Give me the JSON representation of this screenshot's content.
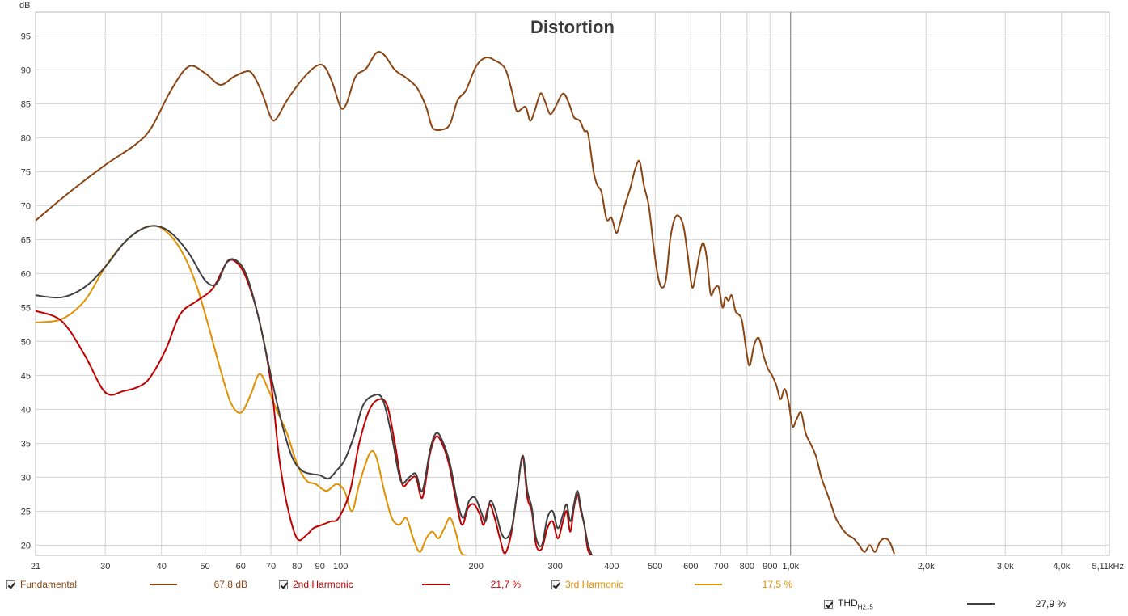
{
  "chart_data": {
    "type": "line",
    "title": "Distortion",
    "ylabel": "dB",
    "xscale": "log",
    "xlim": [
      21,
      5110
    ],
    "ylim": [
      18.5,
      98.5
    ],
    "grid": true,
    "x_ticks": [
      {
        "v": 21,
        "label": "21"
      },
      {
        "v": 30,
        "label": "30"
      },
      {
        "v": 40,
        "label": "40"
      },
      {
        "v": 50,
        "label": "50"
      },
      {
        "v": 60,
        "label": "60"
      },
      {
        "v": 70,
        "label": "70"
      },
      {
        "v": 80,
        "label": "80"
      },
      {
        "v": 90,
        "label": "90"
      },
      {
        "v": 100,
        "label": "100"
      },
      {
        "v": 200,
        "label": "200"
      },
      {
        "v": 300,
        "label": "300"
      },
      {
        "v": 400,
        "label": "400"
      },
      {
        "v": 500,
        "label": "500"
      },
      {
        "v": 600,
        "label": "600"
      },
      {
        "v": 700,
        "label": "700"
      },
      {
        "v": 800,
        "label": "800"
      },
      {
        "v": 900,
        "label": "900"
      },
      {
        "v": 1000,
        "label": "1,0k"
      },
      {
        "v": 2000,
        "label": "2,0k"
      },
      {
        "v": 3000,
        "label": "3,0k"
      },
      {
        "v": 4000,
        "label": "4,0k"
      },
      {
        "v": 5110,
        "label": "5,11kHz"
      }
    ],
    "y_ticks": [
      20,
      25,
      30,
      35,
      40,
      45,
      50,
      55,
      60,
      65,
      70,
      75,
      80,
      85,
      90,
      95
    ],
    "series": [
      {
        "name": "Fundamental",
        "color": "#8b4513",
        "points": [
          [
            21,
            67.8
          ],
          [
            25,
            72
          ],
          [
            30,
            76
          ],
          [
            35,
            79
          ],
          [
            38,
            81.5
          ],
          [
            42,
            87
          ],
          [
            46,
            90.5
          ],
          [
            50,
            89.5
          ],
          [
            54,
            87.8
          ],
          [
            58,
            89
          ],
          [
            62,
            89.8
          ],
          [
            64,
            89.2
          ],
          [
            67,
            86.5
          ],
          [
            70,
            83
          ],
          [
            72,
            82.8
          ],
          [
            76,
            85.5
          ],
          [
            82,
            88.5
          ],
          [
            88,
            90.5
          ],
          [
            92,
            90.5
          ],
          [
            96,
            88
          ],
          [
            100,
            84.5
          ],
          [
            103,
            85
          ],
          [
            108,
            89
          ],
          [
            114,
            90.2
          ],
          [
            120,
            92.5
          ],
          [
            125,
            92.2
          ],
          [
            132,
            90
          ],
          [
            140,
            88.8
          ],
          [
            148,
            87.3
          ],
          [
            155,
            84.5
          ],
          [
            160,
            81.5
          ],
          [
            168,
            81.2
          ],
          [
            175,
            82
          ],
          [
            182,
            85.5
          ],
          [
            190,
            87
          ],
          [
            200,
            90.5
          ],
          [
            210,
            91.8
          ],
          [
            220,
            91.4
          ],
          [
            232,
            90.2
          ],
          [
            240,
            87
          ],
          [
            246,
            84
          ],
          [
            252,
            84.2
          ],
          [
            258,
            84.5
          ],
          [
            264,
            82.5
          ],
          [
            270,
            84
          ],
          [
            278,
            86.5
          ],
          [
            284,
            85.5
          ],
          [
            292,
            83.5
          ],
          [
            300,
            84.5
          ],
          [
            312,
            86.5
          ],
          [
            322,
            85
          ],
          [
            330,
            83
          ],
          [
            340,
            82.5
          ],
          [
            348,
            81
          ],
          [
            355,
            80.5
          ],
          [
            365,
            75
          ],
          [
            372,
            73
          ],
          [
            380,
            72
          ],
          [
            390,
            68
          ],
          [
            400,
            68.2
          ],
          [
            410,
            66
          ],
          [
            418,
            67.5
          ],
          [
            428,
            70
          ],
          [
            440,
            72.5
          ],
          [
            452,
            75.5
          ],
          [
            462,
            76.5
          ],
          [
            472,
            73
          ],
          [
            484,
            70
          ],
          [
            496,
            64
          ],
          [
            506,
            60
          ],
          [
            516,
            58
          ],
          [
            528,
            59
          ],
          [
            540,
            65
          ],
          [
            552,
            68
          ],
          [
            564,
            68.5
          ],
          [
            578,
            67
          ],
          [
            590,
            63
          ],
          [
            604,
            58
          ],
          [
            616,
            60
          ],
          [
            628,
            63
          ],
          [
            640,
            64.5
          ],
          [
            652,
            62
          ],
          [
            664,
            57
          ],
          [
            678,
            57.8
          ],
          [
            692,
            58
          ],
          [
            706,
            55
          ],
          [
            716,
            56.5
          ],
          [
            728,
            56
          ],
          [
            740,
            56.8
          ],
          [
            754,
            54.5
          ],
          [
            766,
            54
          ],
          [
            780,
            53
          ],
          [
            800,
            48
          ],
          [
            812,
            46.5
          ],
          [
            830,
            49.5
          ],
          [
            850,
            50.5
          ],
          [
            870,
            48
          ],
          [
            890,
            46
          ],
          [
            910,
            45
          ],
          [
            930,
            43.5
          ],
          [
            950,
            41.5
          ],
          [
            970,
            43
          ],
          [
            990,
            41
          ],
          [
            1010,
            37.5
          ],
          [
            1030,
            38.5
          ],
          [
            1055,
            39.5
          ],
          [
            1080,
            36.5
          ],
          [
            1110,
            34.8
          ],
          [
            1140,
            33
          ],
          [
            1170,
            30
          ],
          [
            1200,
            28
          ],
          [
            1230,
            26
          ],
          [
            1260,
            24
          ],
          [
            1300,
            22.5
          ],
          [
            1340,
            21.5
          ],
          [
            1380,
            21
          ],
          [
            1420,
            20
          ],
          [
            1460,
            19
          ],
          [
            1500,
            20
          ],
          [
            1540,
            19
          ],
          [
            1580,
            20.5
          ],
          [
            1620,
            21
          ],
          [
            1660,
            20.5
          ],
          [
            1700,
            18.7
          ]
        ]
      },
      {
        "name": "2nd Harmonic",
        "color": "#c00000",
        "points": [
          [
            21,
            54.5
          ],
          [
            24,
            53
          ],
          [
            27,
            48
          ],
          [
            30,
            42.5
          ],
          [
            33,
            42.7
          ],
          [
            36,
            43.5
          ],
          [
            38,
            45
          ],
          [
            41,
            49
          ],
          [
            44,
            54
          ],
          [
            48,
            56
          ],
          [
            52,
            57.8
          ],
          [
            56,
            61.7
          ],
          [
            59,
            61.5
          ],
          [
            62,
            59
          ],
          [
            66,
            53
          ],
          [
            70,
            44
          ],
          [
            73,
            33
          ],
          [
            76,
            26
          ],
          [
            80,
            21
          ],
          [
            84,
            21.5
          ],
          [
            87,
            22.5
          ],
          [
            91,
            23
          ],
          [
            95,
            23.5
          ],
          [
            99,
            24
          ],
          [
            105,
            28
          ],
          [
            110,
            35
          ],
          [
            116,
            40
          ],
          [
            122,
            41.5
          ],
          [
            127,
            40.5
          ],
          [
            132,
            35
          ],
          [
            137,
            29
          ],
          [
            142,
            29.5
          ],
          [
            147,
            30
          ],
          [
            152,
            27
          ],
          [
            158,
            33.5
          ],
          [
            163,
            36
          ],
          [
            168,
            35
          ],
          [
            174,
            32
          ],
          [
            180,
            27
          ],
          [
            186,
            23
          ],
          [
            192,
            25.5
          ],
          [
            198,
            26
          ],
          [
            204,
            24.5
          ],
          [
            208,
            23
          ],
          [
            214,
            26
          ],
          [
            220,
            24
          ],
          [
            226,
            21
          ],
          [
            232,
            18.8
          ],
          [
            240,
            22
          ],
          [
            247,
            28
          ],
          [
            254,
            33
          ],
          [
            260,
            27
          ],
          [
            266,
            25
          ],
          [
            272,
            20
          ],
          [
            280,
            19.5
          ],
          [
            288,
            22.5
          ],
          [
            296,
            23.5
          ],
          [
            304,
            21
          ],
          [
            312,
            23.5
          ],
          [
            318,
            25
          ],
          [
            324,
            22
          ],
          [
            330,
            25.5
          ],
          [
            336,
            27.5
          ],
          [
            342,
            25
          ],
          [
            348,
            23
          ],
          [
            354,
            19.5
          ],
          [
            360,
            18.5
          ]
        ]
      },
      {
        "name": "3rd Harmonic",
        "color": "#e09000",
        "points": [
          [
            21,
            52.8
          ],
          [
            24,
            53.3
          ],
          [
            27,
            56
          ],
          [
            30,
            61
          ],
          [
            33,
            64.5
          ],
          [
            36,
            66.5
          ],
          [
            39,
            67
          ],
          [
            42,
            65.5
          ],
          [
            45,
            62.5
          ],
          [
            48,
            58
          ],
          [
            51,
            52
          ],
          [
            54,
            46
          ],
          [
            57,
            41
          ],
          [
            60,
            39.5
          ],
          [
            63,
            42
          ],
          [
            66,
            45.2
          ],
          [
            69,
            43
          ],
          [
            72,
            40
          ],
          [
            76,
            36.5
          ],
          [
            80,
            32
          ],
          [
            84,
            29.5
          ],
          [
            88,
            29
          ],
          [
            93,
            28
          ],
          [
            98,
            29
          ],
          [
            102,
            28
          ],
          [
            106,
            25
          ],
          [
            110,
            29
          ],
          [
            116,
            33.5
          ],
          [
            120,
            33
          ],
          [
            125,
            28
          ],
          [
            130,
            24
          ],
          [
            135,
            23
          ],
          [
            140,
            24
          ],
          [
            145,
            21
          ],
          [
            150,
            19
          ],
          [
            155,
            21
          ],
          [
            160,
            22
          ],
          [
            165,
            21
          ],
          [
            170,
            22.5
          ],
          [
            175,
            24
          ],
          [
            180,
            22
          ],
          [
            185,
            19
          ],
          [
            190,
            18.5
          ]
        ]
      },
      {
        "name": "THD",
        "color": "#404040",
        "points": [
          [
            21,
            56.8
          ],
          [
            24,
            56.5
          ],
          [
            27,
            58
          ],
          [
            30,
            61
          ],
          [
            33,
            64.5
          ],
          [
            36,
            66.5
          ],
          [
            39,
            67
          ],
          [
            42,
            66
          ],
          [
            46,
            63
          ],
          [
            50,
            59
          ],
          [
            53,
            58.5
          ],
          [
            56,
            61.8
          ],
          [
            59,
            61.8
          ],
          [
            62,
            59.5
          ],
          [
            66,
            53
          ],
          [
            70,
            45
          ],
          [
            74,
            38
          ],
          [
            78,
            33
          ],
          [
            82,
            31
          ],
          [
            86,
            30.5
          ],
          [
            90,
            30.3
          ],
          [
            94,
            29.8
          ],
          [
            98,
            31
          ],
          [
            102,
            32.5
          ],
          [
            107,
            36
          ],
          [
            112,
            40.5
          ],
          [
            118,
            42
          ],
          [
            124,
            41.5
          ],
          [
            130,
            36
          ],
          [
            136,
            29.5
          ],
          [
            142,
            30
          ],
          [
            147,
            30.5
          ],
          [
            152,
            28
          ],
          [
            158,
            34
          ],
          [
            163,
            36.5
          ],
          [
            168,
            35.5
          ],
          [
            175,
            32
          ],
          [
            181,
            27
          ],
          [
            187,
            24
          ],
          [
            193,
            26.5
          ],
          [
            199,
            27
          ],
          [
            205,
            25
          ],
          [
            210,
            23.5
          ],
          [
            215,
            26.5
          ],
          [
            221,
            25
          ],
          [
            227,
            22
          ],
          [
            233,
            21
          ],
          [
            240,
            22.5
          ],
          [
            247,
            28
          ],
          [
            254,
            33.2
          ],
          [
            260,
            28
          ],
          [
            266,
            25.5
          ],
          [
            272,
            21
          ],
          [
            280,
            20
          ],
          [
            288,
            24
          ],
          [
            296,
            25
          ],
          [
            304,
            22.5
          ],
          [
            312,
            24.5
          ],
          [
            318,
            26
          ],
          [
            324,
            23.5
          ],
          [
            330,
            26
          ],
          [
            336,
            28
          ],
          [
            342,
            25.5
          ],
          [
            348,
            23
          ],
          [
            355,
            20
          ],
          [
            362,
            18.5
          ]
        ]
      }
    ]
  },
  "legend": [
    {
      "label": "Fundamental",
      "value": "67,8 dB",
      "color": "#8b4513"
    },
    {
      "label": "2nd Harmonic",
      "value": "21,7 %",
      "color": "#c00000"
    },
    {
      "label": "3rd Harmonic",
      "value": "17,5 %",
      "color": "#e09000"
    },
    {
      "label": "THD",
      "sub": "H2..5",
      "value": "27,9 %",
      "color": "#404040"
    }
  ]
}
